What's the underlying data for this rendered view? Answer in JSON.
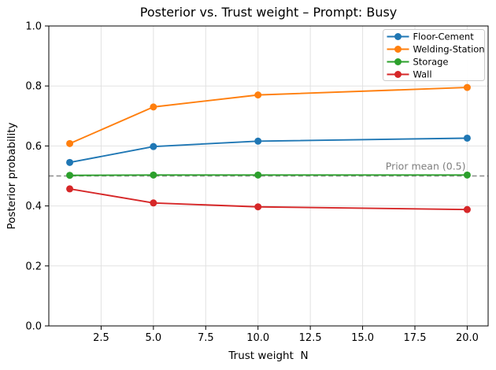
{
  "chart_data": {
    "type": "line",
    "title": "Posterior vs. Trust weight – Prompt: Busy",
    "xlabel": "Trust weight  N",
    "ylabel": "Posterior probability",
    "x": [
      1,
      5,
      10,
      20
    ],
    "series": [
      {
        "name": "Floor-Cement",
        "color": "#1f77b4",
        "values": [
          0.545,
          0.598,
          0.616,
          0.626
        ]
      },
      {
        "name": "Welding-Station",
        "color": "#ff7f0e",
        "values": [
          0.608,
          0.73,
          0.77,
          0.795
        ]
      },
      {
        "name": "Storage",
        "color": "#2ca02c",
        "values": [
          0.502,
          0.503,
          0.503,
          0.503
        ]
      },
      {
        "name": "Wall",
        "color": "#d62728",
        "values": [
          0.457,
          0.41,
          0.397,
          0.388
        ]
      }
    ],
    "reference_line": {
      "y": 0.5,
      "label": "Prior mean (0.5)",
      "color": "#8a8a8a",
      "label_color": "#7f7f7f",
      "style": "dashed"
    },
    "xlim": [
      0,
      21
    ],
    "ylim": [
      0,
      1
    ],
    "xticks": [
      2.5,
      5,
      7.5,
      10,
      12.5,
      15,
      17.5,
      20
    ],
    "xtick_labels": [
      "2.5",
      "5.0",
      "7.5",
      "10.0",
      "12.5",
      "15.0",
      "17.5",
      "20.0"
    ],
    "yticks": [
      0,
      0.2,
      0.4,
      0.6,
      0.8,
      1
    ],
    "ytick_labels": [
      "0.0",
      "0.2",
      "0.4",
      "0.6",
      "0.8",
      "1.0"
    ],
    "grid": true,
    "legend_position": "upper right",
    "marker": "circle"
  }
}
